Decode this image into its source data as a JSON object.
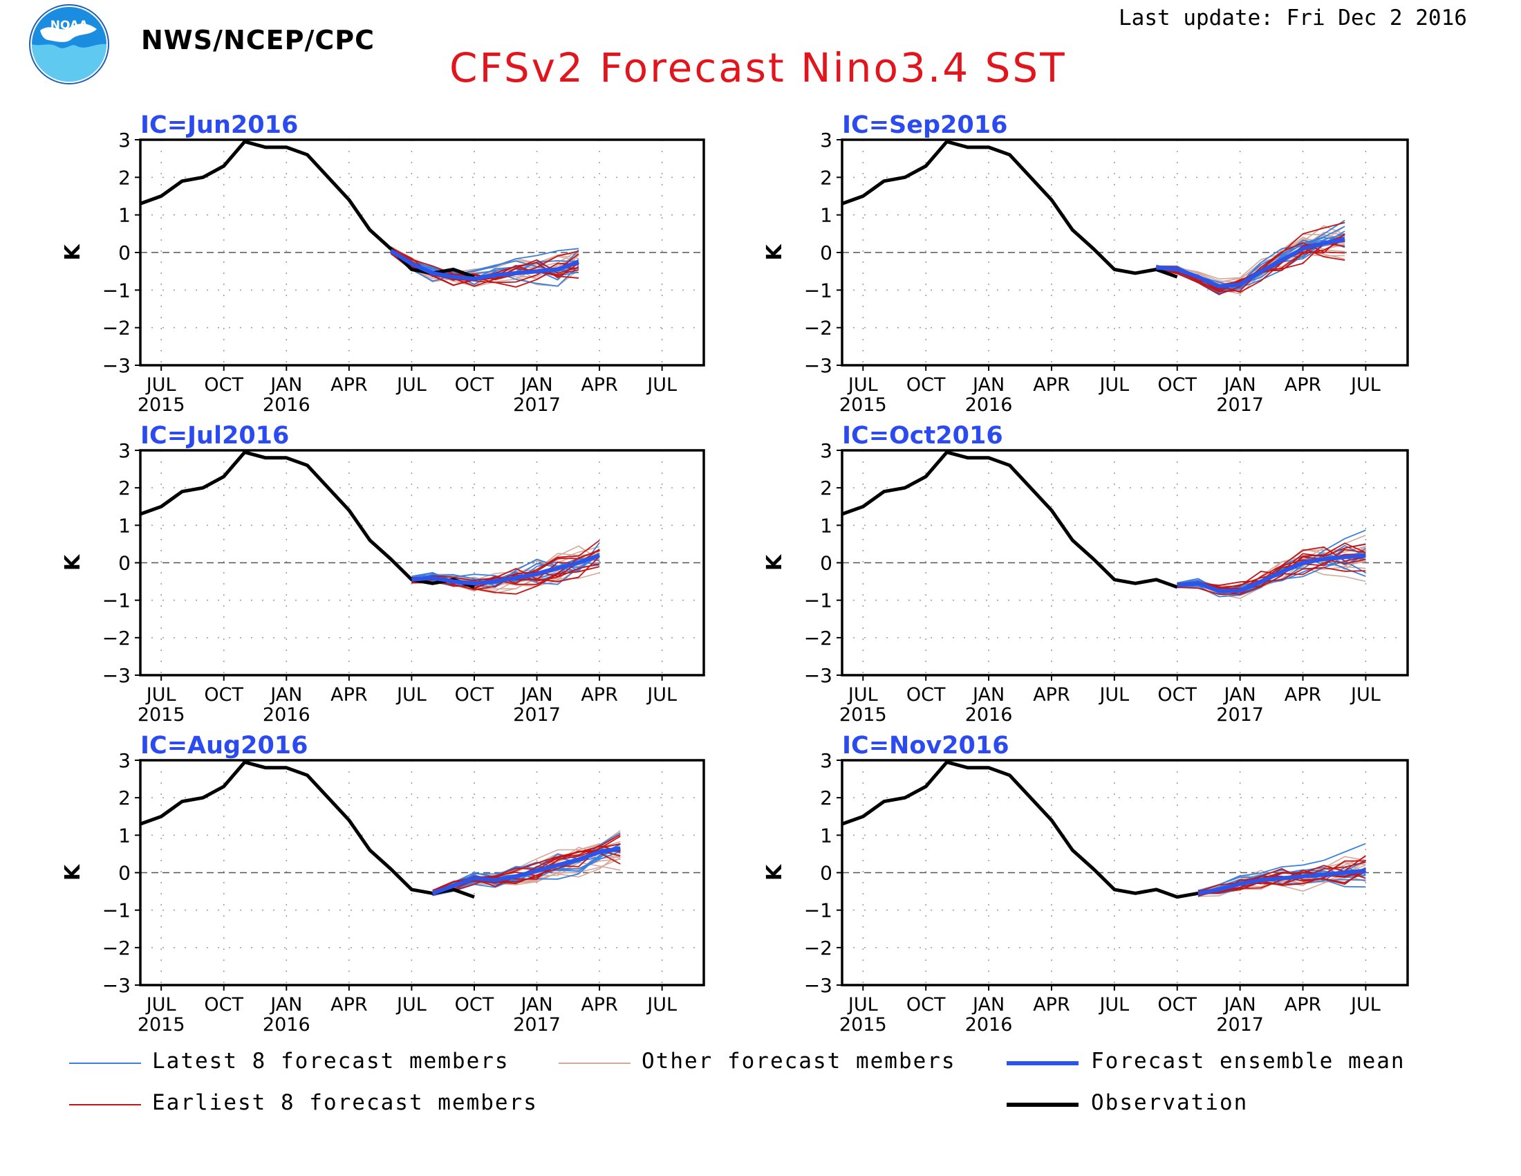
{
  "header": {
    "agency": "NWS/NCEP/CPC",
    "logo_text": "NOAA",
    "last_update": "Last update: Fri Dec 2 2016",
    "title": "CFSv2 Forecast Nino3.4 SST"
  },
  "colors": {
    "title": "#e2141c",
    "panel_label": "#2b4bf0",
    "latest_members": "#3a7fe0",
    "earliest_members": "#c41414",
    "other_members": "#d4a89a",
    "ensemble_mean": "#2b55e8",
    "observation": "#000000"
  },
  "legend": {
    "items": [
      {
        "key": "latest",
        "label": "Latest 8 forecast members"
      },
      {
        "key": "other",
        "label": "Other forecast members"
      },
      {
        "key": "mean",
        "label": "Forecast ensemble mean"
      },
      {
        "key": "earliest",
        "label": "Earliest 8 forecast members"
      },
      {
        "key": "obs",
        "label": "Observation"
      }
    ]
  },
  "chart_data": {
    "type": "line",
    "ylabel": "K",
    "ylim": [
      -3,
      3
    ],
    "yticks": [
      3,
      2,
      1,
      0,
      -1,
      -2,
      -3
    ],
    "x_start": "2015-06",
    "x_end": "2017-09",
    "xticks": [
      {
        "date": "2015-07",
        "month": "JUL",
        "year": "2015"
      },
      {
        "date": "2015-10",
        "month": "OCT",
        "year": ""
      },
      {
        "date": "2016-01",
        "month": "JAN",
        "year": "2016"
      },
      {
        "date": "2016-04",
        "month": "APR",
        "year": ""
      },
      {
        "date": "2016-07",
        "month": "JUL",
        "year": ""
      },
      {
        "date": "2016-10",
        "month": "OCT",
        "year": ""
      },
      {
        "date": "2017-01",
        "month": "JAN",
        "year": "2017"
      },
      {
        "date": "2017-04",
        "month": "APR",
        "year": ""
      },
      {
        "date": "2017-07",
        "month": "JUL",
        "year": ""
      }
    ],
    "zero_line": "dashed",
    "grid": "dotted",
    "observation": {
      "name": "Observation",
      "dates": [
        "2015-06",
        "2015-07",
        "2015-08",
        "2015-09",
        "2015-10",
        "2015-11",
        "2015-12",
        "2016-01",
        "2016-02",
        "2016-03",
        "2016-04",
        "2016-05",
        "2016-06",
        "2016-07",
        "2016-08",
        "2016-09",
        "2016-10",
        "2016-11"
      ],
      "values": [
        1.3,
        1.5,
        1.9,
        2.0,
        2.3,
        2.95,
        2.8,
        2.8,
        2.6,
        2.0,
        1.4,
        0.6,
        0.1,
        -0.45,
        -0.55,
        -0.45,
        -0.65,
        -0.55
      ]
    },
    "panels": [
      {
        "label": "IC=Jun2016",
        "obs_count": 17,
        "mean": {
          "dates": [
            "2016-06",
            "2016-07",
            "2016-08",
            "2016-09",
            "2016-10",
            "2016-11",
            "2016-12",
            "2017-01",
            "2017-02",
            "2017-03"
          ],
          "values": [
            0.05,
            -0.3,
            -0.55,
            -0.65,
            -0.7,
            -0.6,
            -0.55,
            -0.5,
            -0.45,
            -0.25
          ]
        },
        "spread": {
          "before": 0.25,
          "after": 0.7
        },
        "member_counts": {
          "latest": 8,
          "earliest": 8,
          "other": 12
        }
      },
      {
        "label": "IC=Sep2016",
        "obs_count": 17,
        "mean": {
          "dates": [
            "2016-09",
            "2016-10",
            "2016-11",
            "2016-12",
            "2017-01",
            "2017-02",
            "2017-03",
            "2017-04",
            "2017-05",
            "2017-06"
          ],
          "values": [
            -0.4,
            -0.45,
            -0.65,
            -0.9,
            -0.85,
            -0.5,
            -0.2,
            0.1,
            0.25,
            0.35
          ]
        },
        "spread": {
          "before": 0.15,
          "after": 0.75
        },
        "member_counts": {
          "latest": 8,
          "earliest": 8,
          "other": 12
        }
      },
      {
        "label": "IC=Jul2016",
        "obs_count": 17,
        "mean": {
          "dates": [
            "2016-07",
            "2016-08",
            "2016-09",
            "2016-10",
            "2016-11",
            "2016-12",
            "2017-01",
            "2017-02",
            "2017-03",
            "2017-04"
          ],
          "values": [
            -0.45,
            -0.4,
            -0.5,
            -0.55,
            -0.5,
            -0.4,
            -0.3,
            -0.15,
            0.0,
            0.2
          ]
        },
        "spread": {
          "before": 0.2,
          "after": 0.8
        },
        "member_counts": {
          "latest": 8,
          "earliest": 8,
          "other": 12
        }
      },
      {
        "label": "IC=Oct2016",
        "obs_count": 17,
        "mean": {
          "dates": [
            "2016-10",
            "2016-11",
            "2016-12",
            "2017-01",
            "2017-02",
            "2017-03",
            "2017-04",
            "2017-05",
            "2017-06",
            "2017-07"
          ],
          "values": [
            -0.6,
            -0.55,
            -0.75,
            -0.75,
            -0.5,
            -0.25,
            0.0,
            0.1,
            0.15,
            0.2
          ]
        },
        "spread": {
          "before": 0.15,
          "after": 0.8
        },
        "member_counts": {
          "latest": 8,
          "earliest": 8,
          "other": 12
        }
      },
      {
        "label": "IC=Aug2016",
        "obs_count": 17,
        "mean": {
          "dates": [
            "2016-08",
            "2016-09",
            "2016-10",
            "2016-11",
            "2016-12",
            "2017-01",
            "2017-02",
            "2017-03",
            "2017-04",
            "2017-05"
          ],
          "values": [
            -0.55,
            -0.35,
            -0.15,
            -0.2,
            -0.1,
            0.05,
            0.2,
            0.35,
            0.55,
            0.65
          ]
        },
        "spread": {
          "before": 0.2,
          "after": 0.75
        },
        "member_counts": {
          "latest": 8,
          "earliest": 8,
          "other": 12
        }
      },
      {
        "label": "IC=Nov2016",
        "obs_count": 18,
        "mean": {
          "dates": [
            "2016-11",
            "2016-12",
            "2017-01",
            "2017-02",
            "2017-03",
            "2017-04",
            "2017-05",
            "2017-06",
            "2017-07"
          ],
          "values": [
            -0.55,
            -0.45,
            -0.3,
            -0.2,
            -0.15,
            -0.1,
            -0.05,
            0.0,
            0.05
          ]
        },
        "spread": {
          "before": 0.2,
          "after": 0.8
        },
        "member_counts": {
          "latest": 8,
          "earliest": 8,
          "other": 12
        }
      }
    ]
  }
}
